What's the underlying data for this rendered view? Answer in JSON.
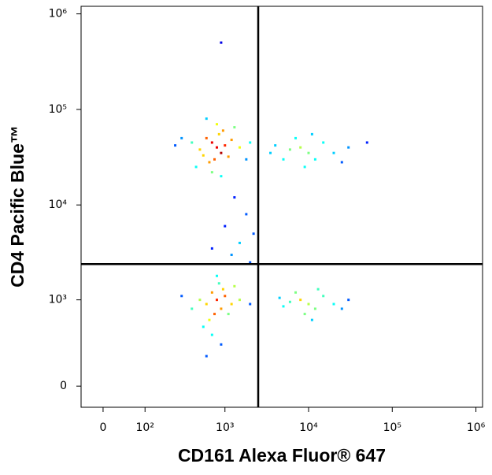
{
  "chart_data": {
    "type": "scatter",
    "x_label": "CD161 Alexa Fluor® 647",
    "y_label": "CD4 Pacific Blue™",
    "xscale": "biexponential",
    "yscale": "biexponential",
    "xlim": [
      -45,
      1200000
    ],
    "ylim": [
      -135,
      1200000
    ],
    "xticks": [
      0,
      {
        "value": 100,
        "label": "10²"
      },
      {
        "value": 1000,
        "label": "10³"
      },
      {
        "value": 10000,
        "label": "10⁴"
      },
      {
        "value": 100000,
        "label": "10⁵"
      },
      {
        "value": 1000000,
        "label": "10⁶"
      }
    ],
    "yticks": [
      0,
      {
        "value": 1000,
        "label": "10³"
      },
      {
        "value": 10000,
        "label": "10⁴"
      },
      {
        "value": 100000,
        "label": "10⁵"
      },
      {
        "value": 1000000,
        "label": "10⁶"
      }
    ],
    "quadrant_lines": {
      "x": 2500,
      "y": 2400
    },
    "colormap": "jet",
    "x": [
      800,
      700,
      900,
      600,
      1000,
      750,
      850,
      500,
      1200,
      650,
      950,
      400,
      1500,
      700,
      300,
      1100,
      800,
      550,
      2000,
      250,
      900,
      1300,
      600,
      450,
      1800,
      10000,
      8000,
      12000,
      6000,
      15000,
      5000,
      20000,
      9000,
      7000,
      30000,
      4000,
      11000,
      25000,
      3500,
      50000,
      800,
      700,
      900,
      600,
      1000,
      750,
      850,
      500,
      1200,
      650,
      950,
      400,
      1500,
      700,
      300,
      1100,
      800,
      550,
      2000,
      900,
      1300,
      600,
      10000,
      8000,
      12000,
      6000,
      15000,
      5000,
      20000,
      9000,
      7000,
      30000,
      11000,
      13000,
      25000,
      4500,
      1200,
      1500,
      2000,
      1000,
      1800,
      700,
      2200,
      1300,
      900
    ],
    "y": [
      40000,
      45000,
      35000,
      50000,
      42000,
      30000,
      55000,
      38000,
      48000,
      28000,
      60000,
      45000,
      40000,
      22000,
      50000,
      32000,
      70000,
      33000,
      45000,
      42000,
      20000,
      65000,
      80000,
      25000,
      30000,
      35000,
      40000,
      30000,
      38000,
      45000,
      30000,
      35000,
      25000,
      50000,
      40000,
      42000,
      55000,
      28000,
      35000,
      45000,
      1000,
      1200,
      800,
      900,
      1100,
      700,
      1500,
      1000,
      900,
      600,
      1300,
      800,
      1000,
      400,
      1100,
      700,
      1800,
      500,
      900,
      300,
      1400,
      200,
      900,
      1000,
      800,
      950,
      1100,
      850,
      900,
      700,
      1200,
      1000,
      600,
      1300,
      800,
      1050,
      3000,
      4000,
      2500,
      6000,
      8000,
      3500,
      5000,
      12000,
      500000
    ]
  }
}
